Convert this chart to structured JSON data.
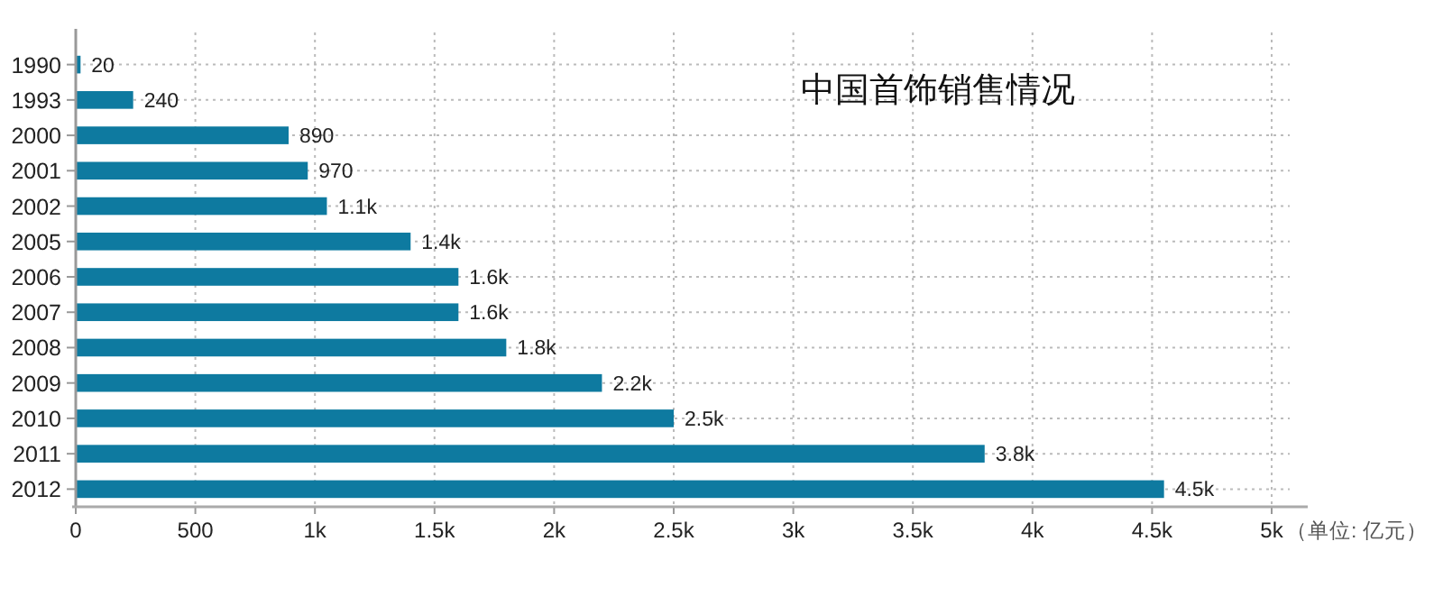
{
  "chart_data": {
    "type": "bar",
    "orientation": "horizontal",
    "title": "中国首饰销售情况",
    "xlabel": "（单位: 亿元）",
    "categories": [
      "1990",
      "1993",
      "2000",
      "2001",
      "2002",
      "2005",
      "2006",
      "2007",
      "2008",
      "2009",
      "2010",
      "2011",
      "2012"
    ],
    "values": [
      20,
      240,
      890,
      970,
      1050,
      1400,
      1600,
      1600,
      1800,
      2200,
      2500,
      3800,
      4550
    ],
    "value_labels": [
      "20",
      "240",
      "890",
      "970",
      "1.1k",
      "1.4k",
      "1.6k",
      "1.6k",
      "1.8k",
      "2.2k",
      "2.5k",
      "3.8k",
      "4.5k"
    ],
    "color": "#0e7aa0",
    "xlim": [
      0,
      5000
    ],
    "xticks": [
      0,
      500,
      {
        "value": 1000,
        "label": "1k"
      },
      {
        "value": 1500,
        "label": "1.5k"
      },
      {
        "value": 2000,
        "label": "2k"
      },
      {
        "value": 2500,
        "label": "2.5k"
      },
      {
        "value": 3000,
        "label": "3k"
      },
      {
        "value": 3500,
        "label": "3.5k"
      },
      {
        "value": 4000,
        "label": "4k"
      },
      {
        "value": 4500,
        "label": "4.5k"
      },
      {
        "value": 5000,
        "label": "5k"
      }
    ],
    "grid": true
  }
}
